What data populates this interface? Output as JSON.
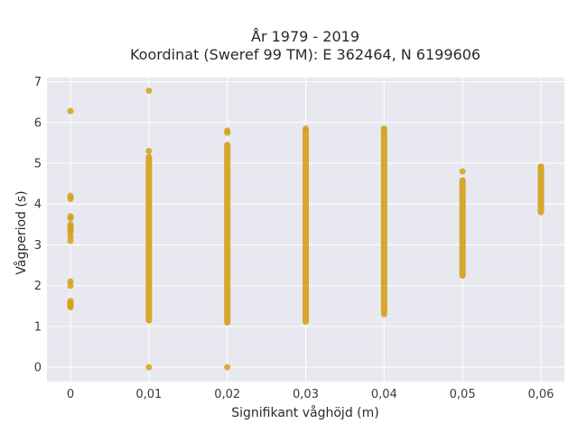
{
  "chart_data": {
    "type": "scatter",
    "title": "År 1979 - 2019",
    "subtitle": "Koordinat (Sweref 99 TM): E 362464, N 6199606",
    "xlabel": "Signifikant våghöjd (m)",
    "ylabel": "Vågperiod (s)",
    "xlim": [
      -0.003,
      0.063
    ],
    "ylim": [
      -0.35,
      7.1
    ],
    "x_ticks": [
      0,
      0.01,
      0.02,
      0.03,
      0.04,
      0.05,
      0.06
    ],
    "x_tick_labels": [
      "0",
      "0,01",
      "0,02",
      "0,03",
      "0,04",
      "0,05",
      "0,06"
    ],
    "y_ticks": [
      0,
      1,
      2,
      3,
      4,
      5,
      6,
      7
    ],
    "y_tick_labels": [
      "0",
      "1",
      "2",
      "3",
      "4",
      "5",
      "6",
      "7"
    ],
    "grid": true,
    "marker_color": "#D4A017",
    "plot_background": "#E8E8F0",
    "columns": [
      {
        "x": 0,
        "points": [
          6.28,
          4.2,
          4.13,
          3.7,
          3.65,
          3.5,
          3.45,
          3.4,
          3.35,
          3.3,
          3.2,
          3.1,
          2.1,
          2.0,
          1.62,
          1.58,
          1.55,
          1.5,
          1.47
        ],
        "ranges": []
      },
      {
        "x": 0.01,
        "points": [
          6.78,
          5.3,
          0.0
        ],
        "ranges": [
          [
            1.15,
            5.15
          ]
        ]
      },
      {
        "x": 0.02,
        "points": [
          5.8,
          5.75,
          0.0
        ],
        "ranges": [
          [
            1.1,
            5.45
          ]
        ]
      },
      {
        "x": 0.03,
        "points": [
          5.85
        ],
        "ranges": [
          [
            1.12,
            5.8
          ]
        ]
      },
      {
        "x": 0.04,
        "points": [
          5.85,
          1.3
        ],
        "ranges": [
          [
            1.38,
            5.8
          ]
        ]
      },
      {
        "x": 0.05,
        "points": [
          4.8
        ],
        "ranges": [
          [
            2.25,
            4.58
          ]
        ]
      },
      {
        "x": 0.06,
        "points": [],
        "ranges": [
          [
            3.8,
            4.92
          ]
        ]
      }
    ]
  }
}
